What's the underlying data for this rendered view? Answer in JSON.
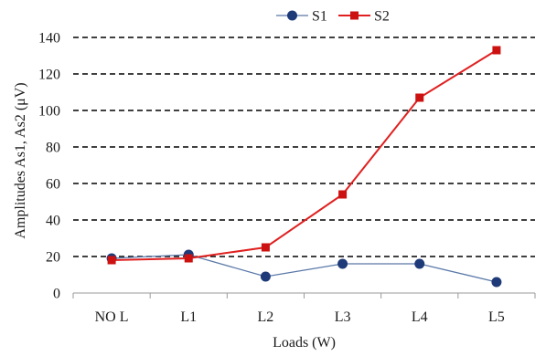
{
  "chart_data": {
    "type": "line",
    "title": "",
    "xlabel": "Loads (W)",
    "ylabel": "Amplitudes As1, As2 (μV)",
    "categories": [
      "NO L",
      "L1",
      "L2",
      "L3",
      "L4",
      "L5"
    ],
    "ylim": [
      0,
      140
    ],
    "yticks": [
      0,
      20,
      40,
      60,
      80,
      100,
      120,
      140
    ],
    "grid": "horizontal-dashed",
    "legend_position": "top",
    "series": [
      {
        "name": "S1",
        "marker": "circle",
        "color": "#1f3a78",
        "line_color": "#5a78a8",
        "values": [
          19,
          21,
          9,
          16,
          16,
          6
        ]
      },
      {
        "name": "S2",
        "marker": "square",
        "color": "#cc1111",
        "line_color": "#e02020",
        "values": [
          18,
          19,
          25,
          54,
          107,
          133
        ]
      }
    ]
  }
}
